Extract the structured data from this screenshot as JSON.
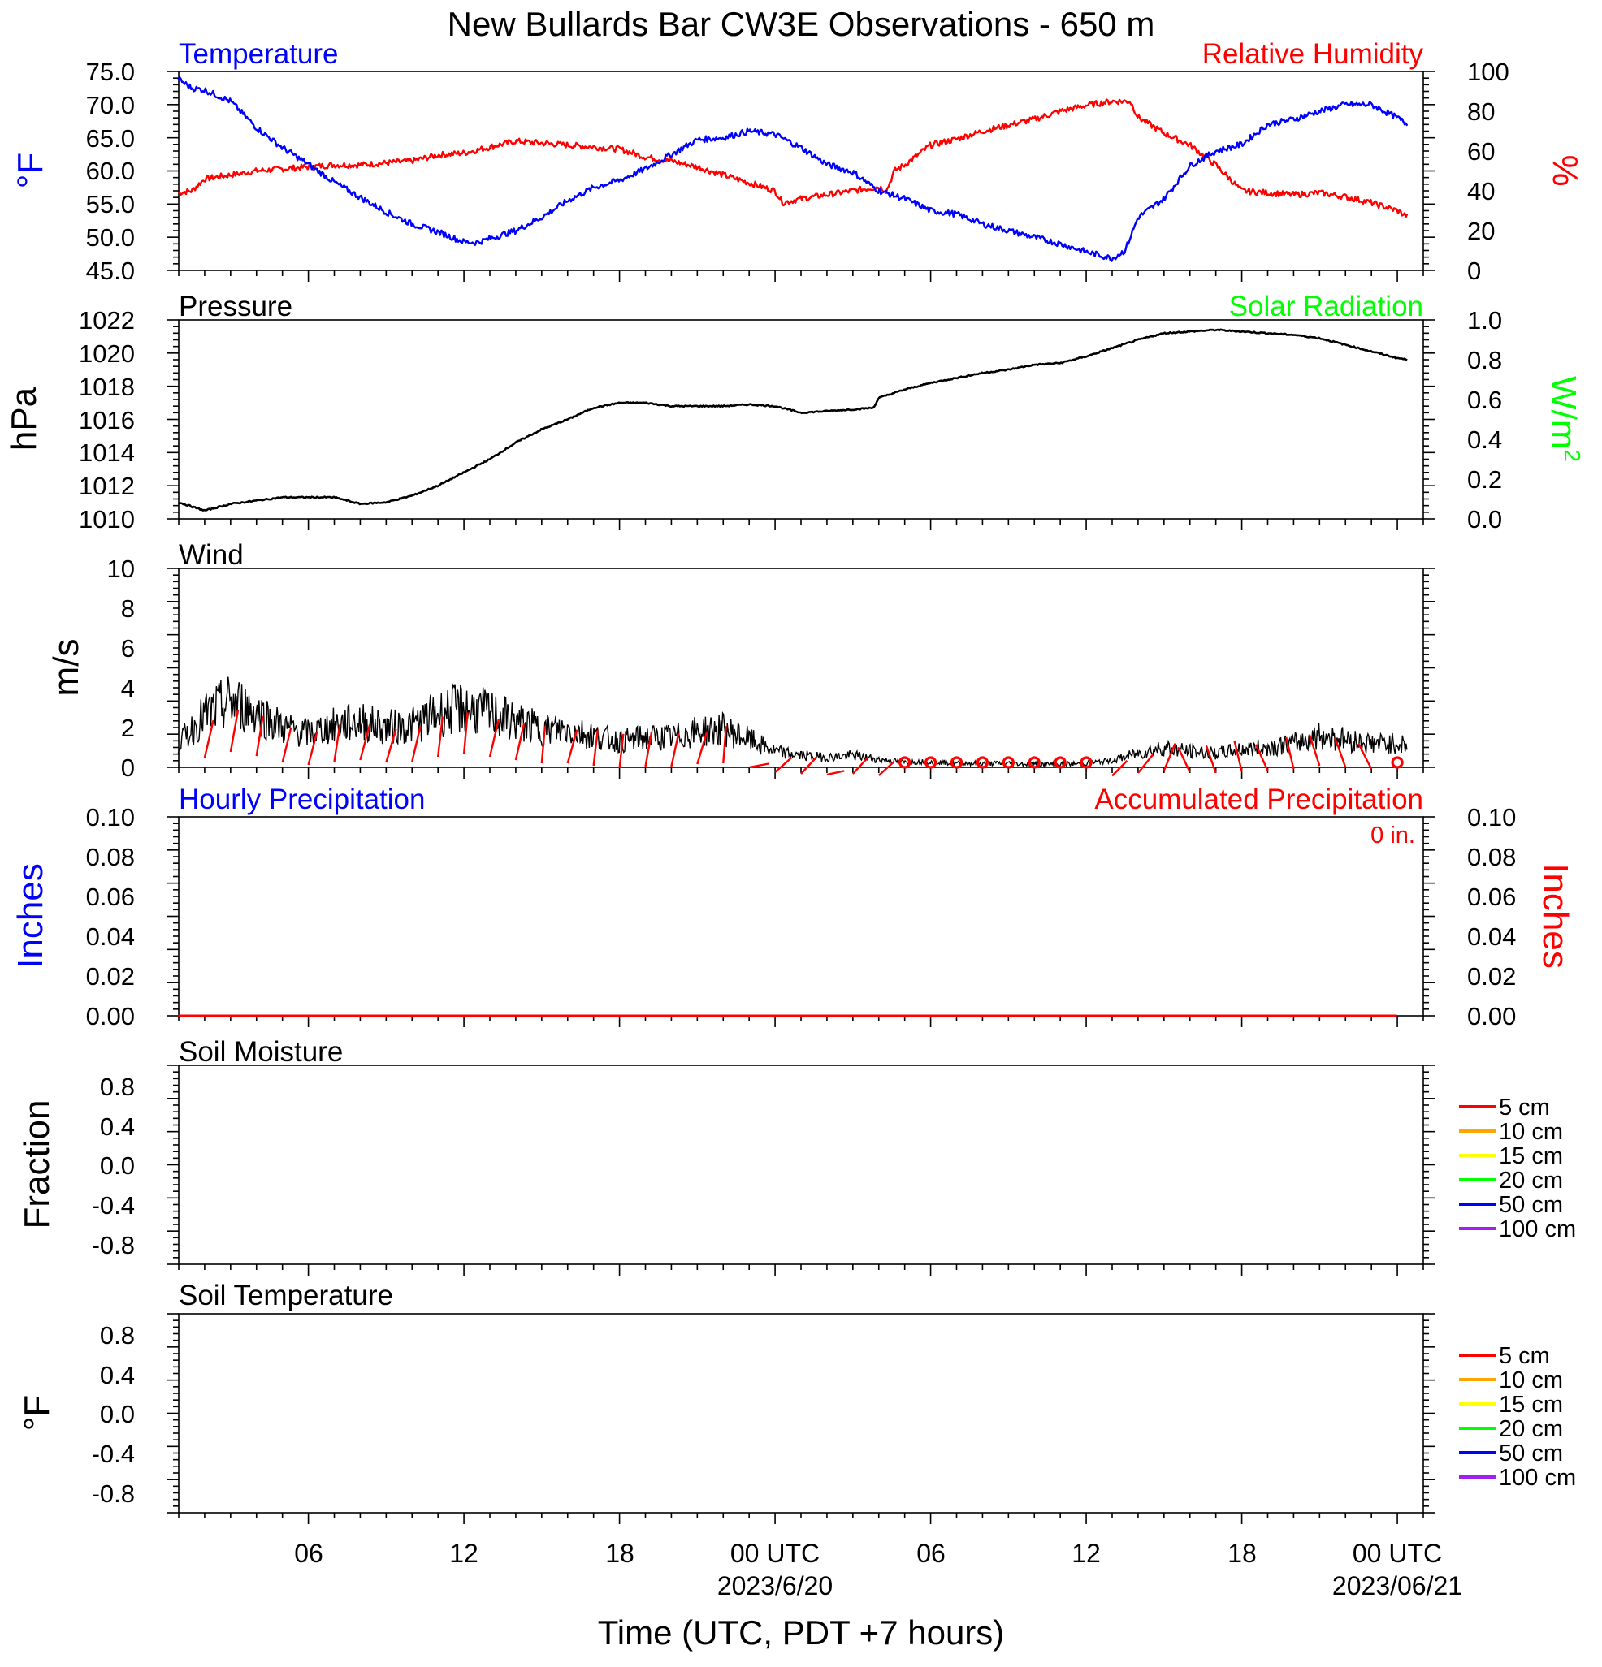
{
  "title": "New Bullards Bar CW3E Observations - 650 m",
  "x_axis": {
    "title": "Time (UTC, PDT +7 hours)",
    "ticks": [
      {
        "hour": 6,
        "label": "06"
      },
      {
        "hour": 12,
        "label": "12"
      },
      {
        "hour": 18,
        "label": "18"
      },
      {
        "hour": 24,
        "label": "00 UTC",
        "sublabel": "2023/6/20"
      },
      {
        "hour": 30,
        "label": "06"
      },
      {
        "hour": 36,
        "label": "12"
      },
      {
        "hour": 42,
        "label": "18"
      },
      {
        "hour": 48,
        "label": "00 UTC",
        "sublabel": "2023/06/21"
      }
    ],
    "range_hours": [
      1,
      49
    ]
  },
  "chart_data": [
    {
      "type": "line",
      "panel": "temperature-humidity",
      "left_title": "Temperature",
      "right_title": "Relative Humidity",
      "left_ylabel": "°F",
      "right_ylabel": "%",
      "left_ylim": [
        45,
        75
      ],
      "right_ylim": [
        0,
        100
      ],
      "left_ticks": [
        "75.0",
        "70.0",
        "65.0",
        "60.0",
        "55.0",
        "50.0",
        "45.0"
      ],
      "right_ticks": [
        "100",
        "80",
        "60",
        "40",
        "20",
        "0"
      ],
      "series": [
        {
          "name": "Temperature",
          "color": "#0000ff",
          "axis": "left",
          "x": [
            0.98,
            1.5,
            2,
            3,
            4,
            5,
            6,
            7,
            8,
            9,
            10,
            11,
            12,
            12.5,
            13,
            14,
            15,
            16,
            17,
            18,
            19,
            20,
            21,
            22,
            23,
            24,
            25,
            26,
            27,
            28,
            29,
            30,
            31,
            32,
            33,
            34,
            35,
            36,
            37,
            37.5,
            38,
            39,
            40,
            41,
            42,
            43,
            44,
            45,
            46,
            47,
            48,
            48.4
          ],
          "y": [
            73.9,
            72.5,
            72.2,
            70.5,
            66.5,
            63.5,
            61.0,
            58.3,
            56.0,
            53.8,
            52.0,
            50.8,
            49.3,
            49.2,
            49.8,
            51.0,
            53.0,
            55.5,
            57.5,
            58.6,
            60.3,
            62.5,
            64.7,
            65.0,
            66.0,
            65.5,
            63.5,
            61.0,
            59.8,
            57.0,
            55.8,
            54.0,
            53.5,
            52.0,
            51.0,
            50.0,
            49.0,
            47.8,
            46.8,
            48.0,
            53.0,
            55.8,
            60.8,
            63.0,
            64.0,
            67.0,
            67.8,
            69.0,
            70.0,
            70.0,
            68.0,
            67.0
          ]
        },
        {
          "name": "Relative Humidity",
          "color": "#ff0000",
          "axis": "right",
          "x": [
            0.98,
            1.5,
            2,
            3,
            4,
            5,
            6,
            7,
            8,
            9,
            10,
            11,
            12,
            13,
            14,
            15,
            16,
            17,
            18,
            19,
            20,
            21,
            22,
            23,
            24,
            24.3,
            25,
            26,
            27,
            28,
            28.3,
            28.6,
            29,
            30,
            31,
            32,
            33,
            34,
            35,
            36,
            36.5,
            37,
            37.7,
            38,
            39,
            40,
            41,
            42,
            43,
            44,
            45,
            46,
            47,
            48,
            48.4
          ],
          "y": [
            39,
            40,
            46,
            48,
            50,
            51,
            52,
            53,
            53,
            54,
            55,
            58,
            59,
            62,
            65,
            64,
            63,
            62,
            61,
            57,
            55,
            52,
            48,
            44,
            40,
            34,
            36,
            38,
            40,
            42,
            40,
            50,
            53,
            63,
            66,
            70,
            73,
            76,
            80,
            83,
            84,
            85,
            85,
            77,
            69,
            63,
            53,
            40,
            39,
            38,
            39,
            37,
            34,
            30,
            27
          ]
        },
        {
          "name": "Solar Radiation",
          "color": "#00ff00",
          "axis": "right",
          "values": []
        }
      ]
    },
    {
      "type": "line",
      "panel": "pressure-solar",
      "left_title": "Pressure",
      "right_title": "Solar Radiation",
      "left_ylabel": "hPa",
      "right_ylabel": "W/m",
      "right_ylabel_sup": "2",
      "left_ylim": [
        1010,
        1022
      ],
      "right_ylim": [
        0.0,
        1.0
      ],
      "left_ticks": [
        "1022",
        "1020",
        "1018",
        "1016",
        "1014",
        "1012",
        "1010"
      ],
      "right_ticks": [
        "1.0",
        "0.8",
        "0.6",
        "0.4",
        "0.2",
        "0.0"
      ],
      "series": [
        {
          "name": "Pressure",
          "color": "#000000",
          "axis": "left",
          "x": [
            0.98,
            2,
            3,
            4,
            5,
            6,
            7,
            8,
            9,
            10,
            11,
            12,
            13,
            14,
            15,
            16,
            17,
            18,
            19,
            20,
            21,
            22,
            23,
            24,
            25,
            26,
            27,
            27.8,
            28,
            29,
            30,
            31,
            32,
            33,
            34,
            35,
            36,
            37,
            38,
            39,
            40,
            41,
            42,
            43,
            44,
            45,
            46,
            47,
            48,
            48.4
          ],
          "y": [
            1011.0,
            1010.5,
            1010.9,
            1011.1,
            1011.3,
            1011.3,
            1011.3,
            1010.9,
            1011.0,
            1011.4,
            1012.0,
            1012.8,
            1013.6,
            1014.6,
            1015.4,
            1016.0,
            1016.7,
            1017.0,
            1017.0,
            1016.8,
            1016.8,
            1016.8,
            1016.9,
            1016.8,
            1016.4,
            1016.5,
            1016.6,
            1016.7,
            1017.3,
            1017.8,
            1018.2,
            1018.5,
            1018.8,
            1019.0,
            1019.3,
            1019.4,
            1019.8,
            1020.3,
            1020.8,
            1021.2,
            1021.3,
            1021.4,
            1021.3,
            1021.2,
            1021.1,
            1020.9,
            1020.5,
            1020.1,
            1019.7,
            1019.6
          ]
        }
      ]
    },
    {
      "type": "line",
      "panel": "wind",
      "left_title": "Wind",
      "left_ylabel": "m/s",
      "left_ylim": [
        0,
        10
      ],
      "left_ticks": [
        "10",
        "8",
        "6",
        "4",
        "2",
        "0"
      ],
      "series": [
        {
          "name": "Wind speed",
          "color": "#000000",
          "axis": "left",
          "x": [
            0.98,
            2,
            3,
            4,
            5,
            6,
            7,
            8,
            9,
            10,
            11,
            12,
            13,
            14,
            15,
            16,
            17,
            18,
            19,
            20,
            21,
            22,
            23,
            24,
            25,
            26,
            27,
            28,
            29,
            30,
            31,
            32,
            33,
            34,
            35,
            36,
            37,
            38,
            39,
            40,
            41,
            42,
            43,
            44,
            45,
            46,
            47,
            48,
            48.4
          ],
          "y": [
            1.2,
            2.6,
            3.3,
            2.8,
            2.0,
            1.7,
            2.1,
            2.3,
            2.0,
            2.1,
            2.7,
            3.0,
            2.7,
            2.3,
            1.9,
            1.9,
            1.6,
            1.3,
            1.5,
            1.5,
            1.8,
            1.9,
            1.4,
            0.8,
            0.6,
            0.5,
            0.6,
            0.4,
            0.25,
            0.3,
            0.2,
            0.2,
            0.2,
            0.15,
            0.15,
            0.2,
            0.35,
            0.7,
            1.0,
            0.8,
            0.7,
            0.9,
            1.0,
            1.2,
            1.6,
            1.4,
            1.2,
            1.2,
            1.1
          ]
        },
        {
          "name": "Wind direction",
          "color": "#ff0000",
          "type": "barbs"
        }
      ]
    },
    {
      "type": "line",
      "panel": "precipitation",
      "left_title": "Hourly Precipitation",
      "right_title": "Accumulated Precipitation",
      "annotation": "0 in.",
      "left_ylabel": "Inches",
      "right_ylabel": "Inches",
      "left_ylim": [
        0,
        0.1
      ],
      "right_ylim": [
        0,
        0.1
      ],
      "left_ticks": [
        "0.10",
        "0.08",
        "0.06",
        "0.04",
        "0.02",
        "0.00"
      ],
      "right_ticks": [
        "0.10",
        "0.08",
        "0.06",
        "0.04",
        "0.02",
        "0.00"
      ],
      "series": [
        {
          "name": "Hourly Precipitation",
          "color": "#0000ff",
          "x": [
            0.98,
            48.4
          ],
          "y": [
            0,
            0
          ]
        },
        {
          "name": "Accumulated Precipitation",
          "color": "#ff0000",
          "x": [
            0.98,
            48.4
          ],
          "y": [
            0,
            0
          ]
        }
      ]
    },
    {
      "type": "line",
      "panel": "soil-moisture",
      "left_title": "Soil Moisture",
      "left_ylabel": "Fraction",
      "left_ylim": [
        -1,
        1
      ],
      "left_ticks": [
        "0.8",
        "0.4",
        "0.0",
        "-0.4",
        "-0.8"
      ],
      "legend": [
        {
          "name": "5 cm",
          "color": "#ff0000"
        },
        {
          "name": "10 cm",
          "color": "#ffa500"
        },
        {
          "name": "15 cm",
          "color": "#ffff00"
        },
        {
          "name": "20 cm",
          "color": "#00ff00"
        },
        {
          "name": "50 cm",
          "color": "#0000ff"
        },
        {
          "name": "100 cm",
          "color": "#a020f0"
        }
      ],
      "series": []
    },
    {
      "type": "line",
      "panel": "soil-temperature",
      "left_title": "Soil Temperature",
      "left_ylabel": "°F",
      "left_ylim": [
        -1,
        1
      ],
      "left_ticks": [
        "0.8",
        "0.4",
        "0.0",
        "-0.4",
        "-0.8"
      ],
      "legend": [
        {
          "name": "5 cm",
          "color": "#ff0000"
        },
        {
          "name": "10 cm",
          "color": "#ffa500"
        },
        {
          "name": "15 cm",
          "color": "#ffff00"
        },
        {
          "name": "20 cm",
          "color": "#00ff00"
        },
        {
          "name": "50 cm",
          "color": "#0000ff"
        },
        {
          "name": "100 cm",
          "color": "#a020f0"
        }
      ],
      "series": []
    }
  ]
}
